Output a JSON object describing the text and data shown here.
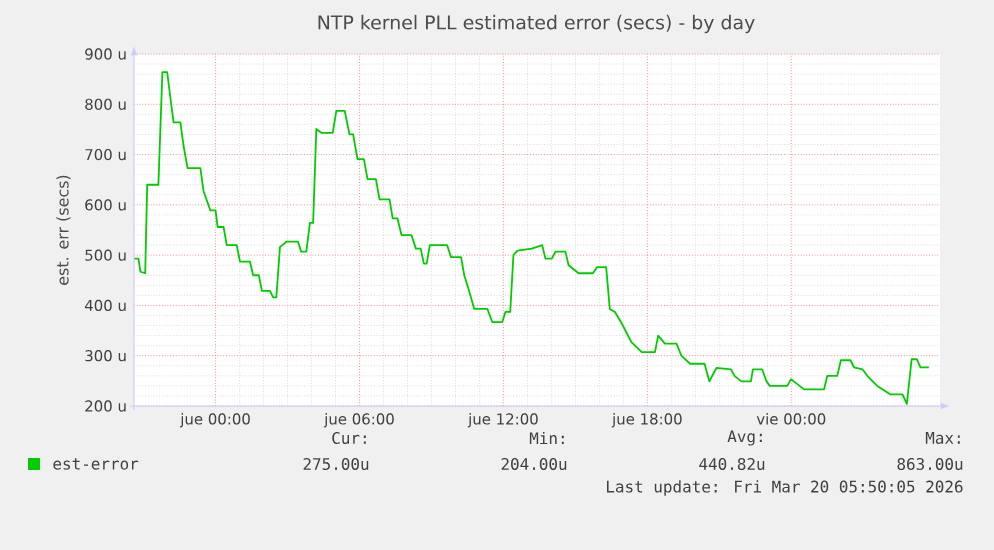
{
  "chart_data": {
    "type": "line",
    "title": "NTP kernel PLL estimated error (secs) - by day",
    "ylabel": "est. err (secs)",
    "xlim": [
      "2026-03-18T20:36",
      "2026-03-20T06:12"
    ],
    "ylim": [
      200,
      900
    ],
    "xticks": [
      {
        "value": "2026-03-19T00:00",
        "label": "jue 00:00"
      },
      {
        "value": "2026-03-19T06:00",
        "label": "jue 06:00"
      },
      {
        "value": "2026-03-19T12:00",
        "label": "jue 12:00"
      },
      {
        "value": "2026-03-19T18:00",
        "label": "jue 18:00"
      },
      {
        "value": "2026-03-20T00:00",
        "label": "vie 00:00"
      }
    ],
    "yticks": [
      {
        "value": 200,
        "label": "200 u"
      },
      {
        "value": 300,
        "label": "300 u"
      },
      {
        "value": 400,
        "label": "400 u"
      },
      {
        "value": 500,
        "label": "500 u"
      },
      {
        "value": 600,
        "label": "600 u"
      },
      {
        "value": 700,
        "label": "700 u"
      },
      {
        "value": 800,
        "label": "800 u"
      },
      {
        "value": 900,
        "label": "900 u"
      }
    ],
    "grid": true,
    "legend": "bottom left",
    "series": [
      {
        "name": "est-error",
        "color": "#00cc00",
        "x": [
          "2026-03-18T20:36",
          "2026-03-18T20:47",
          "2026-03-18T20:52",
          "2026-03-18T21:04",
          "2026-03-18T21:09",
          "2026-03-18T21:37",
          "2026-03-18T21:47",
          "2026-03-18T21:59",
          "2026-03-18T22:07",
          "2026-03-18T22:15",
          "2026-03-18T22:32",
          "2026-03-18T22:40",
          "2026-03-18T22:50",
          "2026-03-18T23:22",
          "2026-03-18T23:30",
          "2026-03-18T23:47",
          "2026-03-19T00:00",
          "2026-03-19T00:05",
          "2026-03-19T00:20",
          "2026-03-19T00:28",
          "2026-03-19T00:53",
          "2026-03-19T01:01",
          "2026-03-19T01:26",
          "2026-03-19T01:34",
          "2026-03-19T01:48",
          "2026-03-19T01:56",
          "2026-03-19T02:16",
          "2026-03-19T02:24",
          "2026-03-19T02:32",
          "2026-03-19T02:41",
          "2026-03-19T02:58",
          "2026-03-19T03:26",
          "2026-03-19T03:34",
          "2026-03-19T03:47",
          "2026-03-19T03:56",
          "2026-03-19T04:04",
          "2026-03-19T04:12",
          "2026-03-19T04:25",
          "2026-03-19T04:53",
          "2026-03-19T05:02",
          "2026-03-19T05:23",
          "2026-03-19T05:35",
          "2026-03-19T05:44",
          "2026-03-19T05:55",
          "2026-03-19T06:11",
          "2026-03-19T06:20",
          "2026-03-19T06:41",
          "2026-03-19T06:50",
          "2026-03-19T07:15",
          "2026-03-19T07:23",
          "2026-03-19T07:35",
          "2026-03-19T07:45",
          "2026-03-19T08:10",
          "2026-03-19T08:21",
          "2026-03-19T08:33",
          "2026-03-19T08:41",
          "2026-03-19T08:48",
          "2026-03-19T08:56",
          "2026-03-19T09:39",
          "2026-03-19T09:49",
          "2026-03-19T10:14",
          "2026-03-19T10:22",
          "2026-03-19T10:34",
          "2026-03-19T10:47",
          "2026-03-19T11:20",
          "2026-03-19T11:32",
          "2026-03-19T11:57",
          "2026-03-19T12:05",
          "2026-03-19T12:17",
          "2026-03-19T12:25",
          "2026-03-19T12:35",
          "2026-03-19T13:11",
          "2026-03-19T13:37",
          "2026-03-19T13:45",
          "2026-03-19T14:01",
          "2026-03-19T14:10",
          "2026-03-19T14:35",
          "2026-03-19T14:43",
          "2026-03-19T15:08",
          "2026-03-19T15:44",
          "2026-03-19T15:54",
          "2026-03-19T16:17",
          "2026-03-19T16:26",
          "2026-03-19T16:39",
          "2026-03-19T16:56",
          "2026-03-19T17:20",
          "2026-03-19T17:46",
          "2026-03-19T18:19",
          "2026-03-19T18:27",
          "2026-03-19T18:44",
          "2026-03-19T19:13",
          "2026-03-19T19:25",
          "2026-03-19T19:47",
          "2026-03-19T20:23",
          "2026-03-19T20:35",
          "2026-03-19T20:53",
          "2026-03-19T21:29",
          "2026-03-19T21:38",
          "2026-03-19T21:55",
          "2026-03-19T22:19",
          "2026-03-19T22:24",
          "2026-03-19T22:47",
          "2026-03-19T22:58",
          "2026-03-19T23:06",
          "2026-03-19T23:50",
          "2026-03-19T23:59",
          "2026-03-20T00:16",
          "2026-03-20T00:32",
          "2026-03-20T01:22",
          "2026-03-20T01:30",
          "2026-03-20T01:55",
          "2026-03-20T02:04",
          "2026-03-20T02:28",
          "2026-03-20T02:37",
          "2026-03-20T02:58",
          "2026-03-20T03:10",
          "2026-03-20T03:26",
          "2026-03-20T03:35",
          "2026-03-20T04:08",
          "2026-03-20T04:38",
          "2026-03-20T04:49",
          "2026-03-20T05:01",
          "2026-03-20T05:14",
          "2026-03-20T05:23",
          "2026-03-20T05:44"
        ],
        "values": [
          493,
          493,
          467,
          464,
          640,
          640,
          864,
          864,
          813,
          764,
          764,
          717,
          673,
          673,
          627,
          589,
          589,
          556,
          556,
          520,
          520,
          487,
          487,
          460,
          460,
          429,
          429,
          416,
          416,
          516,
          527,
          527,
          507,
          507,
          564,
          564,
          751,
          743,
          743,
          787,
          787,
          740,
          740,
          691,
          691,
          651,
          651,
          611,
          611,
          573,
          573,
          540,
          540,
          513,
          513,
          483,
          483,
          520,
          520,
          496,
          496,
          460,
          429,
          393,
          393,
          367,
          367,
          387,
          387,
          500,
          509,
          513,
          520,
          493,
          493,
          507,
          507,
          480,
          464,
          464,
          476,
          476,
          393,
          387,
          364,
          327,
          307,
          307,
          340,
          324,
          324,
          300,
          284,
          284,
          249,
          276,
          273,
          260,
          249,
          249,
          273,
          273,
          249,
          240,
          240,
          253,
          243,
          233,
          233,
          260,
          260,
          291,
          291,
          277,
          273,
          260,
          247,
          240,
          223,
          223,
          204,
          293,
          293,
          277,
          277
        ]
      }
    ],
    "annotations": [
      "Cur:",
      "Min:",
      "Avg:",
      "Max:",
      "275.00u",
      "204.00u",
      "440.82u",
      "863.00u",
      "Last update: Fri Mar 20 05:50:05 2026"
    ]
  }
}
